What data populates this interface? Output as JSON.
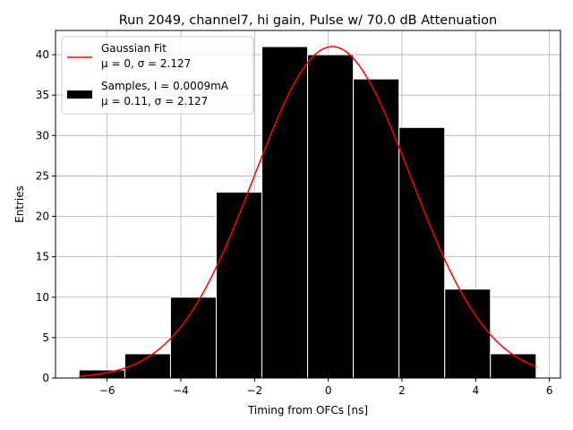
{
  "chart_data": {
    "type": "bar",
    "title": "Run 2049, channel7, hi gain, Pulse w/ 70.0 dB Attenuation",
    "xlabel": "Timing from OFCs [ns]",
    "ylabel": "Entries",
    "xlim": [
      -7.4,
      6.3
    ],
    "ylim": [
      0,
      43
    ],
    "xticks": [
      -6,
      -4,
      -2,
      0,
      2,
      4,
      6
    ],
    "xtick_labels": [
      "−6",
      "−4",
      "−2",
      "0",
      "2",
      "4",
      "6"
    ],
    "yticks": [
      0,
      5,
      10,
      15,
      20,
      25,
      30,
      35,
      40
    ],
    "yticks_labels": [
      "0",
      "5",
      "10",
      "15",
      "20",
      "25",
      "30",
      "35",
      "40"
    ],
    "grid": true,
    "legend_position": "top-left",
    "colors": {
      "bars": "#000000",
      "bar_edge": "#ffffff",
      "fit": "#ff0000",
      "grid": "#b0b0b0"
    },
    "histogram": {
      "name": "Samples, I = 0.0009mA",
      "stats": "μ = 0.11, σ = 2.127",
      "bin_edges": [
        -6.76,
        -5.52,
        -4.28,
        -3.04,
        -1.8,
        -0.56,
        0.68,
        1.92,
        3.16,
        4.4,
        5.64
      ],
      "counts": [
        1,
        3,
        10,
        23,
        41,
        40,
        37,
        31,
        11,
        3
      ]
    },
    "fit": {
      "name": "Gaussian Fit",
      "stats": "μ = 0, σ = 2.127",
      "amplitude": 41,
      "mean": 0.11,
      "sigma": 2.127,
      "x_range": [
        -6.76,
        5.64
      ]
    }
  }
}
